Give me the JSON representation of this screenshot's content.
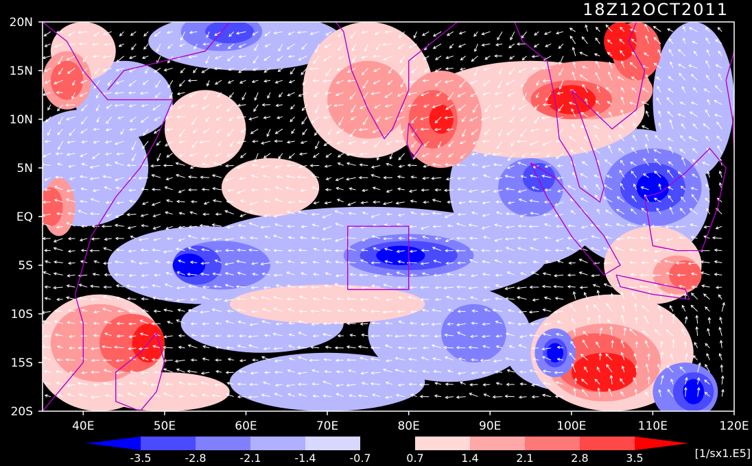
{
  "header": {
    "timestamp": "18Z12OCT2011"
  },
  "map": {
    "lon_range": [
      35,
      120
    ],
    "lat_range": [
      -20,
      20
    ],
    "x_ticks": [
      {
        "lon": 40,
        "label": "40E"
      },
      {
        "lon": 50,
        "label": "50E"
      },
      {
        "lon": 60,
        "label": "60E"
      },
      {
        "lon": 70,
        "label": "70E"
      },
      {
        "lon": 80,
        "label": "80E"
      },
      {
        "lon": 90,
        "label": "90E"
      },
      {
        "lon": 100,
        "label": "100E"
      },
      {
        "lon": 110,
        "label": "110E"
      },
      {
        "lon": 120,
        "label": "120E"
      }
    ],
    "y_ticks": [
      {
        "lat": 20,
        "label": "20N"
      },
      {
        "lat": 15,
        "label": "15N"
      },
      {
        "lat": 10,
        "label": "10N"
      },
      {
        "lat": 5,
        "label": "5N"
      },
      {
        "lat": 0,
        "label": "EQ"
      },
      {
        "lat": -5,
        "label": "5S"
      },
      {
        "lat": -10,
        "label": "10S"
      },
      {
        "lat": -15,
        "label": "15S"
      },
      {
        "lat": -20,
        "label": "20S"
      }
    ],
    "field": "vorticity",
    "overlay": "wind-vectors",
    "colors": {
      "coastline": "#b000c8",
      "vectors": "#ffffff",
      "background": "#000000"
    }
  },
  "colorbar": {
    "units": "[1/sx1.E5]",
    "labels": [
      "-3.5",
      "-2.8",
      "-2.1",
      "-1.4",
      "-0.7",
      "0.7",
      "1.4",
      "2.1",
      "2.8",
      "3.5"
    ],
    "colors": [
      "#0000ff",
      "#4a4aff",
      "#8080ff",
      "#b0b0ff",
      "#d8d8ff",
      "#000000",
      "#ffd8d8",
      "#ffa8a8",
      "#ff7878",
      "#ff4848",
      "#ff0000"
    ]
  }
}
